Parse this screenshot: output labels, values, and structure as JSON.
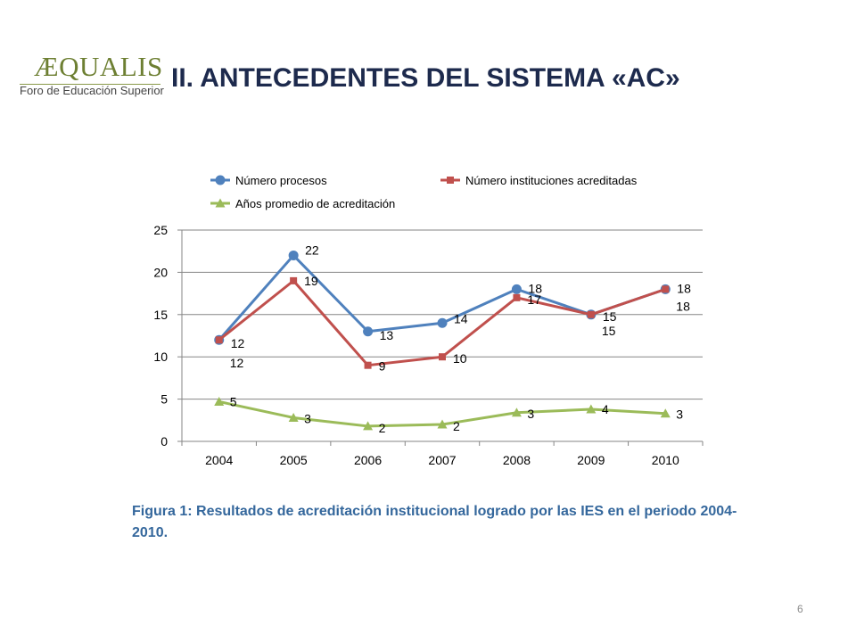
{
  "slide": {
    "logo_word": "ÆQUALIS",
    "logo_sub": "Foro de Educación Superior",
    "title": "II. ANTECEDENTES DEL SISTEMA «AC»",
    "caption": "Figura 1: Resultados de acreditación institucional logrado por las IES en el periodo 2004-2010.",
    "page_number": "6"
  },
  "colors": {
    "series_blue": "#4f81bd",
    "series_red": "#c0504d",
    "series_green": "#9bbb59",
    "grid": "#868686",
    "title": "#1d2a4d",
    "caption": "#34679c"
  },
  "chart_data": {
    "type": "line",
    "title": "",
    "xlabel": "",
    "ylabel": "",
    "categories": [
      "2004",
      "2005",
      "2006",
      "2007",
      "2008",
      "2009",
      "2010"
    ],
    "ylim": [
      0,
      25
    ],
    "yticks": [
      0,
      5,
      10,
      15,
      20,
      25
    ],
    "grid": true,
    "legend_position": "top",
    "series": [
      {
        "name": "Número procesos",
        "marker": "circle",
        "color": "#4f81bd",
        "values": [
          12,
          22,
          13,
          14,
          18,
          15,
          18
        ],
        "labels": [
          "12",
          "22",
          "13",
          "14",
          "18",
          "15",
          "18"
        ]
      },
      {
        "name": "Número instituciones acreditadas",
        "marker": "square",
        "color": "#c0504d",
        "values": [
          12,
          19,
          9,
          10,
          17,
          15,
          18
        ],
        "labels": [
          "12",
          "19",
          "9",
          "10",
          "17",
          "15",
          "18"
        ]
      },
      {
        "name": "Años promedio de acreditación",
        "marker": "triangle",
        "color": "#9bbb59",
        "values": [
          4.7,
          2.8,
          1.8,
          2.0,
          3.4,
          3.8,
          3.3
        ],
        "labels": [
          "5",
          "3",
          "2",
          "2",
          "3",
          "4",
          "3"
        ]
      }
    ]
  }
}
